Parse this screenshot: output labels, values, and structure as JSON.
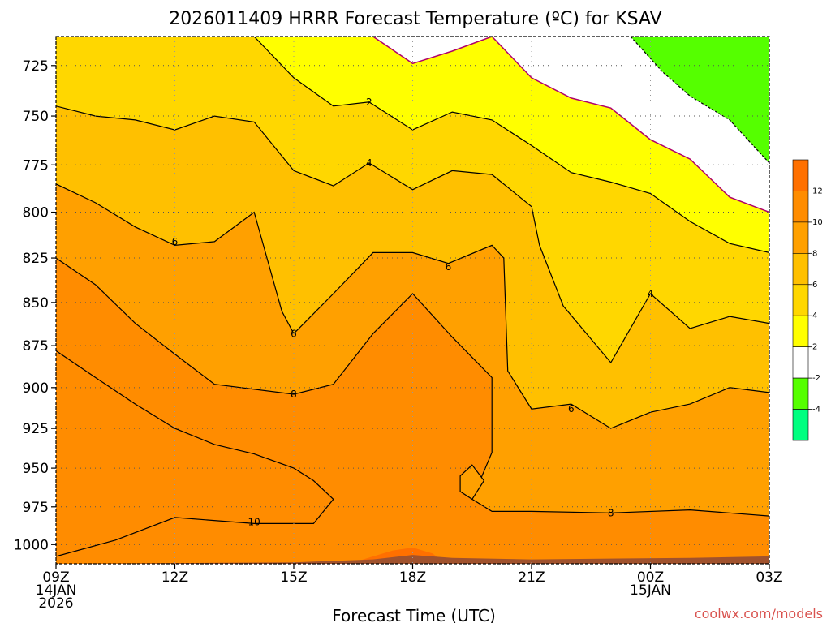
{
  "title": "2026011409 HRRR Forecast Temperature (ºC) for KSAV",
  "credit": "coolwx.com/models",
  "colors": {
    "below_-4": "#00ff80",
    "-4_-2": "#55ff00",
    "-2_2": "#ffffff",
    "2_4": "#ffff00",
    "4_6": "#ffd700",
    "6_8": "#ffc000",
    "8_10": "#ffa000",
    "10_12": "#ff8c00",
    "above_12": "#ff7000",
    "terrain": "#a0522d",
    "zero_line": "#b0006b"
  },
  "chart_data": {
    "type": "contour",
    "title": "2026011409 HRRR Forecast Temperature (ºC) for KSAV",
    "xlabel": "Forecast Time (UTC)",
    "ylabel": "",
    "x_ticks": [
      {
        "hour": 0,
        "lines": [
          "09Z",
          "14JAN",
          "2026"
        ]
      },
      {
        "hour": 3,
        "lines": [
          "12Z"
        ]
      },
      {
        "hour": 6,
        "lines": [
          "15Z"
        ]
      },
      {
        "hour": 9,
        "lines": [
          "18Z"
        ]
      },
      {
        "hour": 12,
        "lines": [
          "21Z"
        ]
      },
      {
        "hour": 15,
        "lines": [
          "00Z",
          "15JAN"
        ]
      },
      {
        "hour": 18,
        "lines": [
          "03Z"
        ]
      }
    ],
    "xlim": [
      0,
      18
    ],
    "y_ticks": [
      "725",
      "750",
      "775",
      "800",
      "825",
      "850",
      "875",
      "900",
      "925",
      "950",
      "975",
      "1000"
    ],
    "ylim_hpa": [
      1013,
      711
    ],
    "y_scale": "log",
    "colorbar": {
      "levels": [
        -6,
        -4,
        -2,
        2,
        4,
        6,
        8,
        10,
        12,
        14
      ],
      "tick_labels": [
        "-4",
        "-2",
        "2",
        "4",
        "6",
        "8",
        "10",
        "12"
      ],
      "colors": [
        "#00ff80",
        "#55ff00",
        "#ffffff",
        "#ffff00",
        "#ffd700",
        "#ffc000",
        "#ffa000",
        "#ff8c00",
        "#ff7000"
      ]
    },
    "contour_labels": [
      {
        "value": "2",
        "hour": 7.9,
        "hpa": 743
      },
      {
        "value": "4",
        "hour": 7.9,
        "hpa": 774
      },
      {
        "value": "6",
        "hour": 3.0,
        "hpa": 816
      },
      {
        "value": "6",
        "hour": 9.9,
        "hpa": 830
      },
      {
        "value": "4",
        "hour": 15.0,
        "hpa": 845
      },
      {
        "value": "6",
        "hour": 6.0,
        "hpa": 868
      },
      {
        "value": "8",
        "hour": 6.0,
        "hpa": 904
      },
      {
        "value": "6",
        "hour": 13.0,
        "hpa": 913
      },
      {
        "value": "10",
        "hour": 5.0,
        "hpa": 985
      },
      {
        "value": "8",
        "hour": 14.0,
        "hpa": 979
      }
    ],
    "bands_bottom_to_top": [
      {
        "from": "10",
        "to": "12",
        "boundary": [
          [
            0,
            878
          ],
          [
            1,
            894
          ],
          [
            2,
            910
          ],
          [
            3,
            925
          ],
          [
            4,
            935
          ],
          [
            5,
            941
          ],
          [
            6,
            950
          ],
          [
            6.5,
            958
          ],
          [
            7.0,
            970
          ],
          [
            6.5,
            986
          ],
          [
            5.0,
            986
          ],
          [
            3.0,
            982
          ],
          [
            1.5,
            997
          ],
          [
            0,
            1008
          ]
        ]
      },
      {
        "from": "8",
        "to": "10",
        "line": [
          [
            0,
            825
          ],
          [
            1,
            840
          ],
          [
            2,
            862
          ],
          [
            3,
            880
          ],
          [
            4,
            898
          ],
          [
            6,
            904
          ],
          [
            7,
            898
          ],
          [
            8,
            868
          ],
          [
            9,
            845
          ],
          [
            10,
            870
          ],
          [
            11,
            894
          ],
          [
            11.0,
            940
          ],
          [
            10.5,
            970
          ],
          [
            11,
            978
          ],
          [
            12,
            978
          ],
          [
            14,
            979
          ],
          [
            16,
            977
          ],
          [
            18,
            981
          ]
        ]
      },
      {
        "from": "6",
        "to": "8",
        "line": [
          [
            0,
            785
          ],
          [
            1,
            795
          ],
          [
            2,
            808
          ],
          [
            3,
            818
          ],
          [
            4,
            816
          ],
          [
            5,
            800
          ],
          [
            5.7,
            855
          ],
          [
            6.0,
            868
          ],
          [
            7.0,
            845
          ],
          [
            8.0,
            822
          ],
          [
            9.0,
            822
          ],
          [
            9.9,
            828
          ],
          [
            11.0,
            818
          ],
          [
            11.3,
            825
          ],
          [
            11.4,
            890
          ],
          [
            12.0,
            913
          ],
          [
            13.0,
            910
          ],
          [
            14.0,
            925
          ],
          [
            15.0,
            915
          ],
          [
            16.0,
            910
          ],
          [
            17.0,
            900
          ],
          [
            18,
            903
          ]
        ]
      },
      {
        "from": "4",
        "to": "6",
        "line": [
          [
            0,
            745
          ],
          [
            1,
            750
          ],
          [
            2,
            752
          ],
          [
            3,
            757
          ],
          [
            4,
            750
          ],
          [
            5,
            753
          ],
          [
            6,
            778
          ],
          [
            7,
            786
          ],
          [
            7.9,
            774
          ],
          [
            9.0,
            788
          ],
          [
            10.0,
            778
          ],
          [
            11.0,
            780
          ],
          [
            12.0,
            797
          ],
          [
            12.2,
            818
          ],
          [
            12.8,
            852
          ],
          [
            14.0,
            885
          ],
          [
            15.0,
            845
          ],
          [
            16.0,
            865
          ],
          [
            17.0,
            858
          ],
          [
            18,
            862
          ]
        ]
      },
      {
        "from": "2",
        "to": "4",
        "line": [
          [
            0,
            711
          ],
          [
            5.0,
            711
          ],
          [
            6.0,
            731
          ],
          [
            7.0,
            745
          ],
          [
            7.9,
            743
          ],
          [
            9.0,
            757
          ],
          [
            10.0,
            748
          ],
          [
            11.0,
            752
          ],
          [
            12.0,
            765
          ],
          [
            13.0,
            779
          ],
          [
            14.0,
            784
          ],
          [
            15.0,
            790
          ],
          [
            16.0,
            805
          ],
          [
            17.0,
            817
          ],
          [
            18.0,
            822
          ]
        ]
      }
    ],
    "zero_line": [
      [
        8.0,
        711
      ],
      [
        9.0,
        724
      ],
      [
        10.0,
        718
      ],
      [
        11.0,
        711
      ],
      [
        12.0,
        731
      ],
      [
        13.0,
        741
      ],
      [
        14.0,
        746
      ],
      [
        15.0,
        762
      ],
      [
        16.0,
        772
      ],
      [
        17.0,
        792
      ],
      [
        18.0,
        800
      ]
    ],
    "minus2_line": [
      [
        14.5,
        711
      ],
      [
        15.3,
        728
      ],
      [
        16.0,
        740
      ],
      [
        17.0,
        752
      ],
      [
        17.5,
        763
      ],
      [
        18.0,
        774
      ]
    ],
    "small_closed_8_contour": [
      [
        10.2,
        955
      ],
      [
        10.5,
        948
      ],
      [
        10.8,
        958
      ],
      [
        10.5,
        970
      ],
      [
        10.2,
        965
      ]
    ],
    "terrain_hpa": [
      [
        0,
        1013
      ],
      [
        6,
        1012
      ],
      [
        8,
        1010
      ],
      [
        9,
        1007
      ],
      [
        10,
        1009
      ],
      [
        12,
        1010
      ],
      [
        16,
        1009
      ],
      [
        18,
        1008
      ]
    ]
  }
}
